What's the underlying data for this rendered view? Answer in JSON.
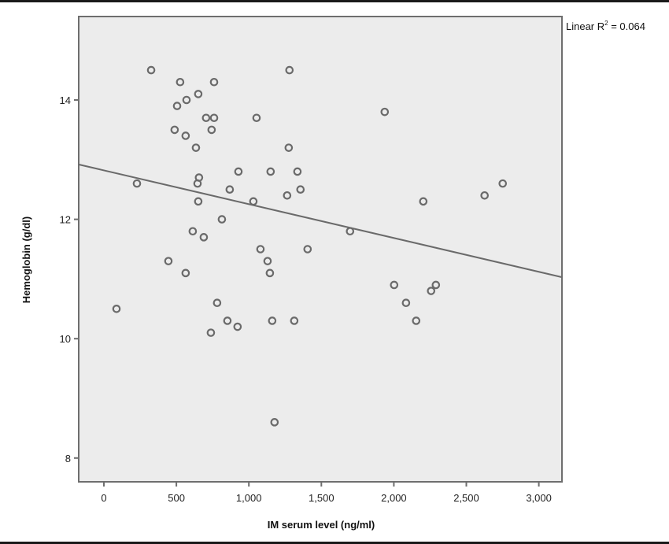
{
  "chart_data": {
    "type": "scatter",
    "title": "",
    "xlabel": "IM serum level (ng/ml)",
    "ylabel": "Hemoglobin (g/dl)",
    "xlim": [
      -175,
      3160
    ],
    "ylim": [
      7.35,
      15.2
    ],
    "x_ticks": [
      0,
      500,
      1000,
      1500,
      2000,
      2500,
      3000
    ],
    "x_tick_labels": [
      "0",
      "500",
      "1,000",
      "1,500",
      "2,000",
      "2,500",
      "3,000"
    ],
    "y_ticks": [
      8,
      10,
      12,
      14
    ],
    "y_tick_labels": [
      "8",
      "10",
      "12",
      "14"
    ],
    "grid": false,
    "legend_position": "top-right, outside plot",
    "annotation": {
      "prefix": "Linear R",
      "superscript": "2",
      "suffix": " = 0.064"
    },
    "fit_line": {
      "type": "linear",
      "r_squared": 0.064,
      "x": [
        -175,
        3160
      ],
      "y": [
        12.92,
        11.03
      ]
    },
    "points": [
      {
        "x": 326,
        "y": 14.5
      },
      {
        "x": 526,
        "y": 14.3
      },
      {
        "x": 760,
        "y": 14.3
      },
      {
        "x": 1280,
        "y": 14.5
      },
      {
        "x": 651,
        "y": 14.1
      },
      {
        "x": 570,
        "y": 14.0
      },
      {
        "x": 505,
        "y": 13.9
      },
      {
        "x": 705,
        "y": 13.7
      },
      {
        "x": 760,
        "y": 13.7
      },
      {
        "x": 1053,
        "y": 13.7
      },
      {
        "x": 1937,
        "y": 13.8
      },
      {
        "x": 488,
        "y": 13.5
      },
      {
        "x": 743,
        "y": 13.5
      },
      {
        "x": 564,
        "y": 13.4
      },
      {
        "x": 635,
        "y": 13.2
      },
      {
        "x": 1275,
        "y": 13.2
      },
      {
        "x": 928,
        "y": 12.8
      },
      {
        "x": 1150,
        "y": 12.8
      },
      {
        "x": 1335,
        "y": 12.8
      },
      {
        "x": 656,
        "y": 12.7
      },
      {
        "x": 228,
        "y": 12.6
      },
      {
        "x": 646,
        "y": 12.6
      },
      {
        "x": 868,
        "y": 12.5
      },
      {
        "x": 1356,
        "y": 12.5
      },
      {
        "x": 1264,
        "y": 12.4
      },
      {
        "x": 2626,
        "y": 12.4
      },
      {
        "x": 2751,
        "y": 12.6
      },
      {
        "x": 651,
        "y": 12.3
      },
      {
        "x": 1031,
        "y": 12.3
      },
      {
        "x": 2203,
        "y": 12.3
      },
      {
        "x": 814,
        "y": 12.0
      },
      {
        "x": 613,
        "y": 11.8
      },
      {
        "x": 1698,
        "y": 11.8
      },
      {
        "x": 689,
        "y": 11.7
      },
      {
        "x": 1080,
        "y": 11.5
      },
      {
        "x": 1405,
        "y": 11.5
      },
      {
        "x": 445,
        "y": 11.3
      },
      {
        "x": 1129,
        "y": 11.3
      },
      {
        "x": 564,
        "y": 11.1
      },
      {
        "x": 1145,
        "y": 11.1
      },
      {
        "x": 2002,
        "y": 10.9
      },
      {
        "x": 2290,
        "y": 10.9
      },
      {
        "x": 2257,
        "y": 10.8
      },
      {
        "x": 2084,
        "y": 10.6
      },
      {
        "x": 781,
        "y": 10.6
      },
      {
        "x": 87,
        "y": 10.5
      },
      {
        "x": 852,
        "y": 10.3
      },
      {
        "x": 1161,
        "y": 10.3
      },
      {
        "x": 1313,
        "y": 10.3
      },
      {
        "x": 2154,
        "y": 10.3
      },
      {
        "x": 922,
        "y": 10.2
      },
      {
        "x": 738,
        "y": 10.1
      },
      {
        "x": 1177,
        "y": 8.6
      }
    ]
  },
  "style": {
    "plot_background": "#ececec",
    "frame_color": "#6e6e6e",
    "marker_stroke": "#6a6a6a",
    "fit_line_color": "#6a6a6a",
    "page_rule_color": "#1a1a1a"
  }
}
